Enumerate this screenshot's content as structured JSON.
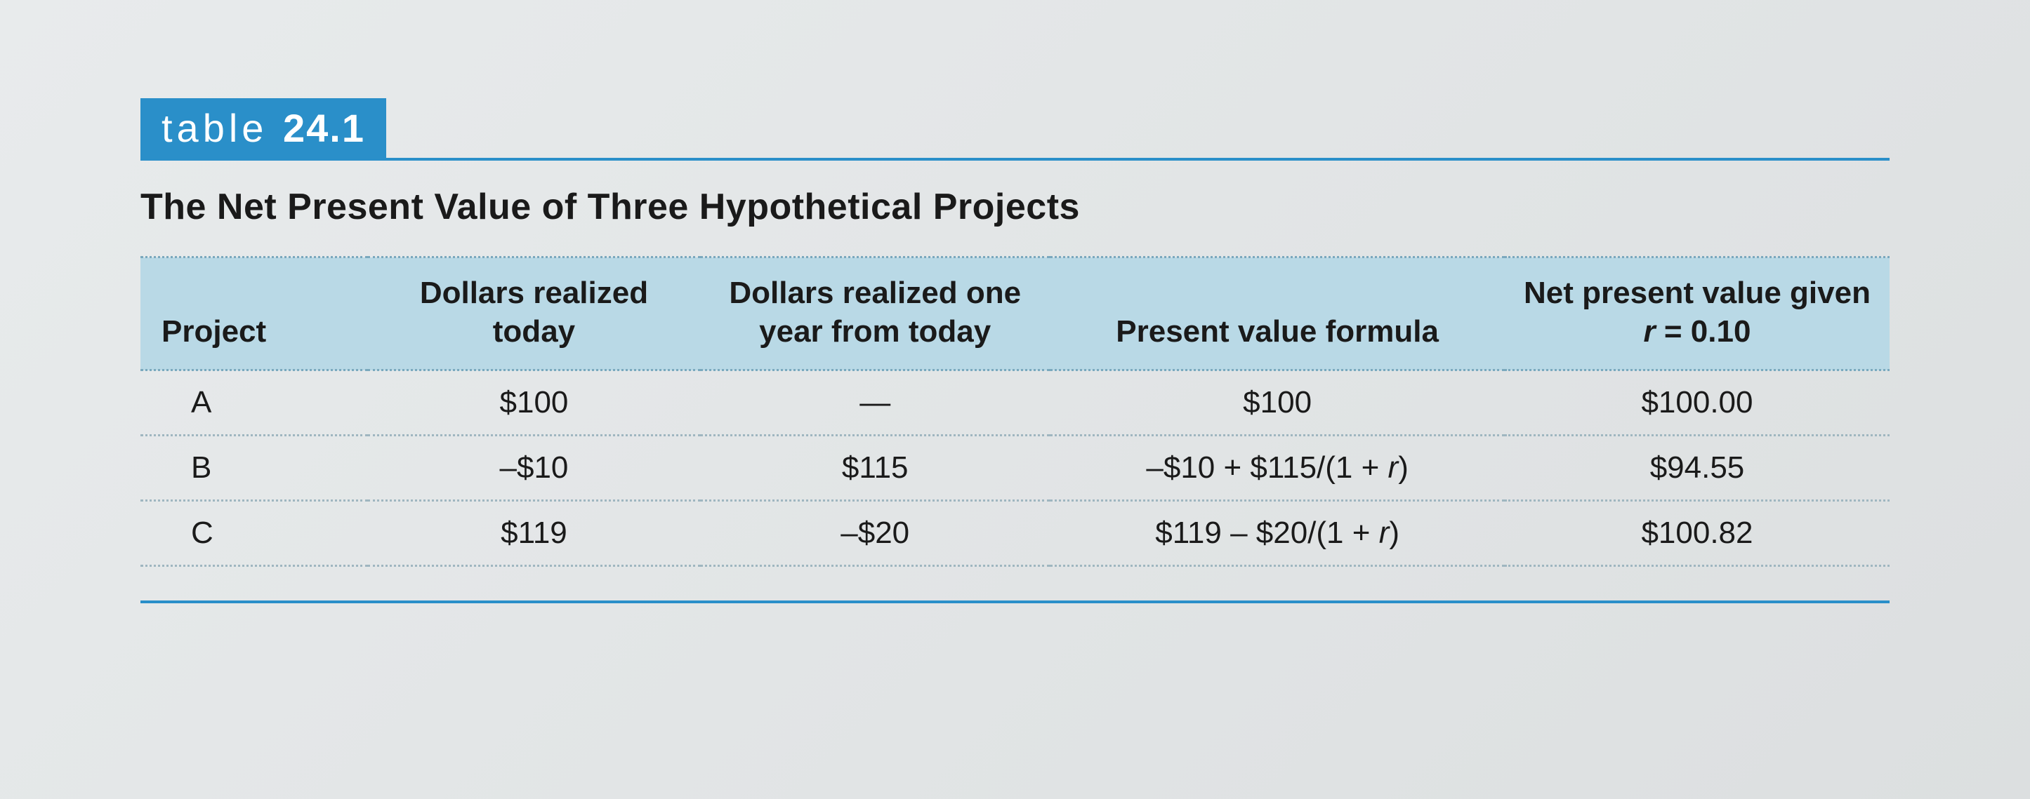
{
  "label": {
    "prefix": "table ",
    "number": "24.1",
    "bg_color": "#2a8fc9",
    "text_color": "#ffffff"
  },
  "title": "The Net Present Value of Three Hypothetical Projects",
  "rule_color": "#2a8fc9",
  "table": {
    "header_bg": "#b9d9e6",
    "dotted_border_color": "#7aa8bd",
    "columns": [
      {
        "label": "Project",
        "align": "left"
      },
      {
        "label": "Dollars realized today",
        "align": "center"
      },
      {
        "label": "Dollars realized one year from today",
        "align": "center"
      },
      {
        "label": "Present value formula",
        "align": "center"
      },
      {
        "label_html": "Net present value given <span class=\"italic\">r</span> = 0.10",
        "align": "center"
      }
    ],
    "rows": [
      {
        "project": "A",
        "today": "$100",
        "one_year": "—",
        "formula": "$100",
        "npv": "$100.00"
      },
      {
        "project": "B",
        "today": "–$10",
        "one_year": "$115",
        "formula_html": "–$10 + $115/(1 + <span class=\"italic\">r</span>)",
        "npv": "$94.55"
      },
      {
        "project": "C",
        "today": "$119",
        "one_year": "–$20",
        "formula_html": "$119 – $20/(1 + <span class=\"italic\">r</span>)",
        "npv": "$100.82"
      }
    ]
  }
}
